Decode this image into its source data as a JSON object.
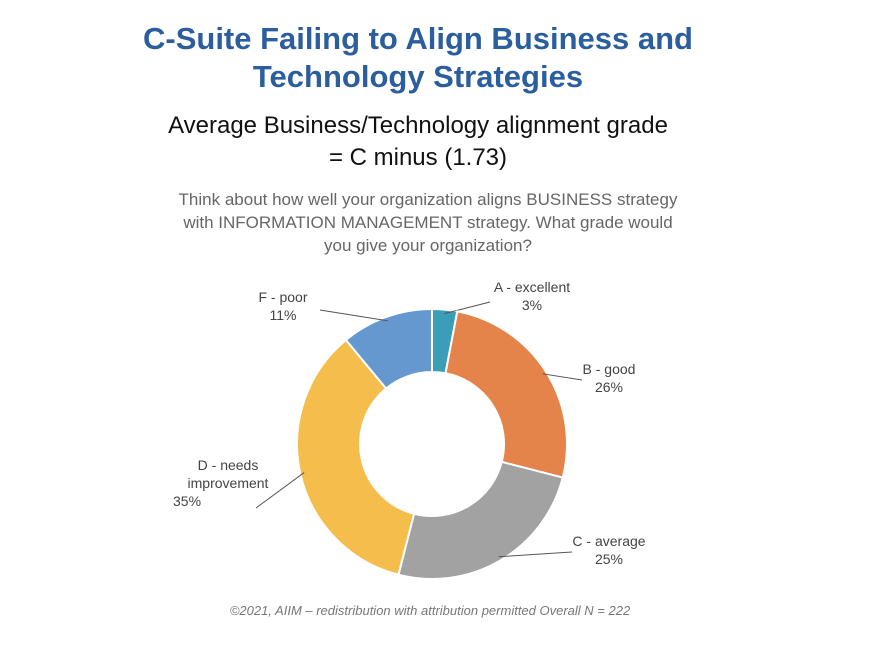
{
  "chart_data": {
    "type": "donut",
    "title": "C-Suite Failing to Align Business and Technology Strategies",
    "subtitle": "Average Business/Technology alignment grade = C minus (1.73)",
    "question": "Think about how well your organization aligns BUSINESS strategy with INFORMATION MANAGEMENT strategy. What grade would you give your organization?",
    "categories": [
      "A - excellent",
      "B - good",
      "C - average",
      "D - needs improvement",
      "F - poor"
    ],
    "values": [
      3,
      26,
      25,
      35,
      11
    ],
    "value_labels": [
      "3%",
      "26%",
      "25%",
      "35%",
      "11%"
    ],
    "colors": [
      "#3a9fb6",
      "#e4844b",
      "#a2a2a2",
      "#f5be4c",
      "#6498cf"
    ],
    "note": "©2021, AIIM – redistribution with attribution permitted Overall N = 222"
  }
}
